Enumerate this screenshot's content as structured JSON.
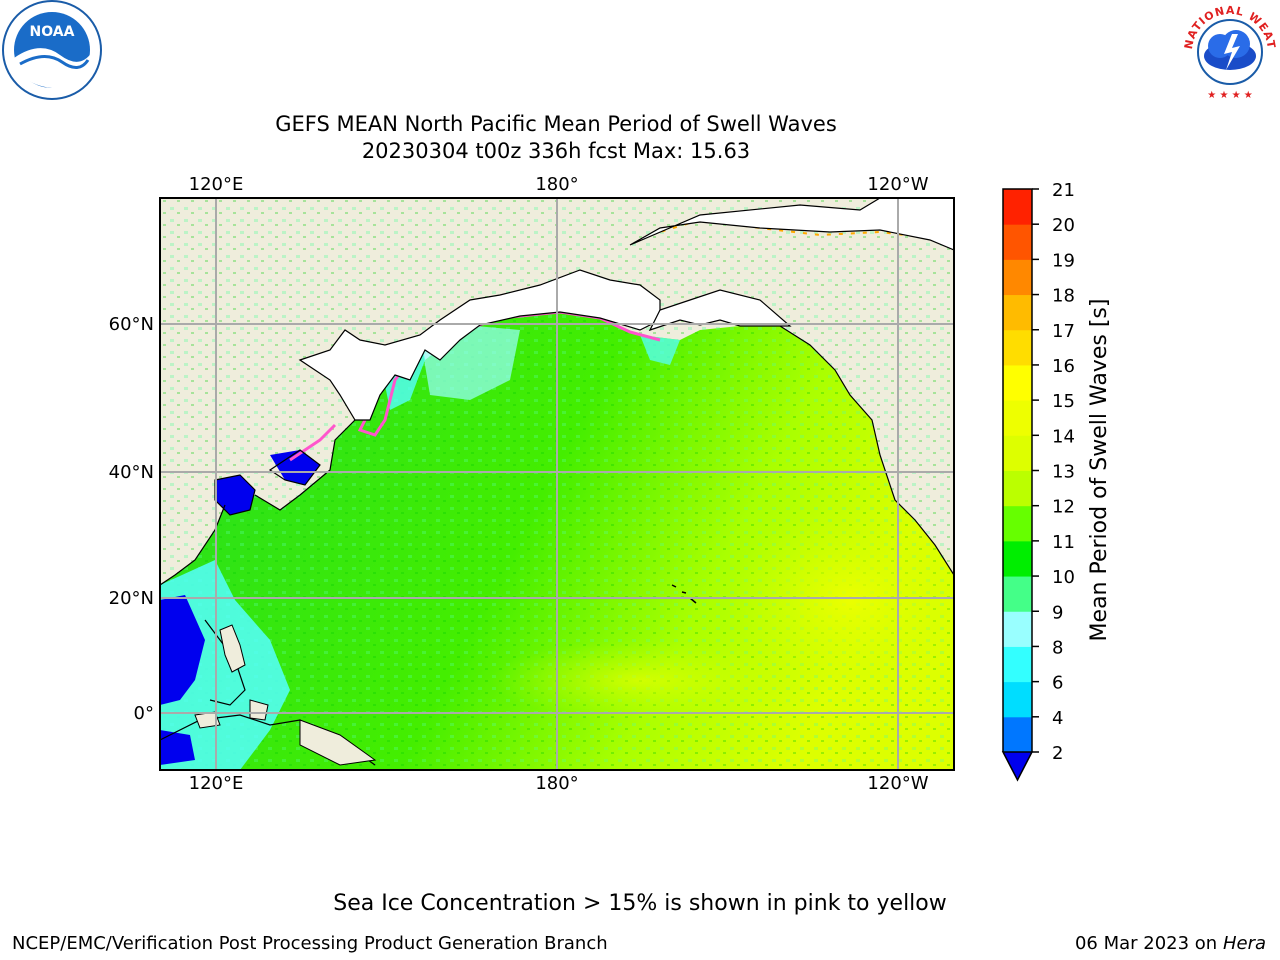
{
  "header": {
    "title_line1": "GEFS MEAN North Pacific Mean Period of Swell Waves",
    "title_line2": "20230304 t00z 336h fcst   Max: 15.63"
  },
  "logos": {
    "left": "NOAA",
    "right": "NATIONAL WEATHER SERVICE"
  },
  "map": {
    "lon_labels_top": [
      "120°E",
      "180°",
      "120°W"
    ],
    "lon_labels_bottom": [
      "120°E",
      "180°",
      "120°W"
    ],
    "lat_labels": [
      "60°N",
      "40°N",
      "20°N",
      "0°"
    ],
    "land_color": "#efeddc",
    "ocean_dominant_color": "#33e000",
    "ice_color": "#ff55cc"
  },
  "colorbar": {
    "label": "Mean Period of Swell Waves [s]",
    "ticks": [
      "2",
      "4",
      "6",
      "8",
      "9",
      "10",
      "11",
      "12",
      "13",
      "14",
      "15",
      "16",
      "17",
      "18",
      "19",
      "20",
      "21"
    ],
    "colors": [
      "#0077ff",
      "#00ddff",
      "#33ffff",
      "#99ffff",
      "#44ff88",
      "#00ee00",
      "#66ff00",
      "#bbff00",
      "#ddff00",
      "#eeff00",
      "#ffff00",
      "#ffdd00",
      "#ffbb00",
      "#ff8800",
      "#ff5500",
      "#ff2200"
    ],
    "under_color": "#0000ee"
  },
  "footer": {
    "note": "Sea Ice Concentration > 15% is shown in pink to yellow",
    "credit": "NCEP/EMC/Verification Post Processing Product Generation Branch",
    "date": "06 Mar 2023 on",
    "machine": "Hera"
  }
}
